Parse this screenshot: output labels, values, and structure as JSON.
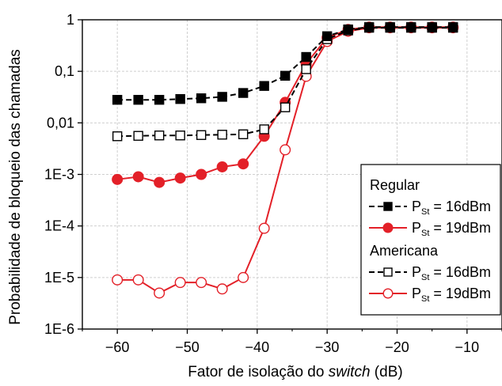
{
  "chart_data": {
    "type": "line",
    "xlabel_parts": [
      "Fator de isolação do ",
      "switch",
      " (dB)"
    ],
    "ylabel": "Probabilidade de bloqueio das chamadas",
    "xlim": [
      -65,
      -5
    ],
    "ylim": [
      1e-06,
      1
    ],
    "yscale": "log",
    "xticks": [
      -60,
      -50,
      -40,
      -30,
      -20,
      -10
    ],
    "yticks": [
      {
        "value": 1e-06,
        "label": "1E-6"
      },
      {
        "value": 1e-05,
        "label": "1E-5"
      },
      {
        "value": 0.0001,
        "label": "1E-4"
      },
      {
        "value": 0.001,
        "label": "1E-3"
      },
      {
        "value": 0.01,
        "label": "0,01"
      },
      {
        "value": 0.1,
        "label": "0,1"
      },
      {
        "value": 1,
        "label": "1"
      }
    ],
    "grid": true,
    "legend_position": "bottom-right",
    "x": [
      -60,
      -57,
      -54,
      -51,
      -48,
      -45,
      -42,
      -39,
      -36,
      -33,
      -30,
      -27,
      -24,
      -21,
      -18,
      -15,
      -12
    ],
    "legend": {
      "groups": [
        {
          "title": "Regular",
          "entries": [
            {
              "prefix": "P",
              "sub": "St",
              "suffix": " = 16dBm",
              "series": 0
            },
            {
              "prefix": "P",
              "sub": "St",
              "suffix": " = 19dBm",
              "series": 1
            }
          ]
        },
        {
          "title": "Americana",
          "entries": [
            {
              "prefix": "P",
              "sub": "St",
              "suffix": " = 16dBm",
              "series": 2
            },
            {
              "prefix": "P",
              "sub": "St",
              "suffix": " = 19dBm",
              "series": 3
            }
          ]
        }
      ]
    },
    "series": [
      {
        "color": "#000000",
        "marker": "square",
        "filled": true,
        "dashed": true,
        "values": [
          0.028,
          0.028,
          0.028,
          0.029,
          0.03,
          0.032,
          0.038,
          0.052,
          0.082,
          0.19,
          0.48,
          0.65,
          0.72,
          0.72,
          0.72,
          0.72,
          0.72
        ]
      },
      {
        "color": "#e32028",
        "marker": "circle",
        "filled": true,
        "dashed": false,
        "values": [
          0.0008,
          0.0009,
          0.0007,
          0.00085,
          0.001,
          0.0014,
          0.0016,
          0.0055,
          0.025,
          0.14,
          0.45,
          0.65,
          0.72,
          0.72,
          0.72,
          0.72,
          0.72
        ]
      },
      {
        "color": "#000000",
        "marker": "square",
        "filled": false,
        "dashed": true,
        "values": [
          0.0055,
          0.0056,
          0.0057,
          0.0057,
          0.0058,
          0.0059,
          0.006,
          0.0075,
          0.02,
          0.11,
          0.42,
          0.62,
          0.7,
          0.7,
          0.7,
          0.7,
          0.7
        ]
      },
      {
        "color": "#e32028",
        "marker": "circle",
        "filled": false,
        "dashed": false,
        "values": [
          9e-06,
          9e-06,
          5e-06,
          8e-06,
          8e-06,
          6e-06,
          1e-05,
          9e-05,
          0.003,
          0.08,
          0.38,
          0.6,
          0.7,
          0.7,
          0.7,
          0.7,
          0.7
        ]
      }
    ]
  }
}
